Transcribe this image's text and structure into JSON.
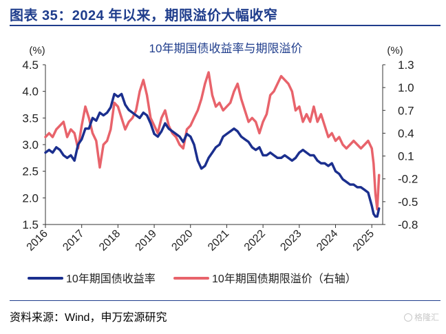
{
  "header": {
    "figure_title": "图表 35：2024 年以来，期限溢价大幅收窄",
    "title_color": "#1f3d8c"
  },
  "footer": {
    "source": "资料来源：Wind，申万宏源研究",
    "watermark": "格隆汇"
  },
  "chart_data": {
    "type": "line",
    "title": "10年期国债收益率与期限溢价",
    "left_unit": "(%)",
    "right_unit": "(%)",
    "x_start_year": 2016,
    "x_end_year": 2025.3,
    "x_ticks": [
      2016,
      2017,
      2018,
      2019,
      2020,
      2021,
      2022,
      2023,
      2024,
      2025
    ],
    "left_axis": {
      "ylim": [
        1.5,
        4.5
      ],
      "ticks": [
        1.5,
        2.0,
        2.5,
        3.0,
        3.5,
        4.0,
        4.5
      ]
    },
    "right_axis": {
      "ylim": [
        -0.8,
        1.3
      ],
      "ticks": [
        -0.8,
        -0.5,
        -0.2,
        0.1,
        0.4,
        0.7,
        1.0,
        1.3
      ]
    },
    "grid": false,
    "legend_position": "bottom",
    "series": [
      {
        "name": "10年期国债收益率",
        "axis": "left",
        "color": "#1b2f8e",
        "x": [
          2016.0,
          2016.1,
          2016.2,
          2016.3,
          2016.4,
          2016.5,
          2016.6,
          2016.7,
          2016.8,
          2016.9,
          2017.0,
          2017.1,
          2017.2,
          2017.3,
          2017.4,
          2017.5,
          2017.6,
          2017.7,
          2017.8,
          2017.9,
          2018.0,
          2018.1,
          2018.2,
          2018.3,
          2018.4,
          2018.5,
          2018.6,
          2018.7,
          2018.8,
          2018.9,
          2019.0,
          2019.1,
          2019.2,
          2019.3,
          2019.4,
          2019.5,
          2019.6,
          2019.7,
          2019.8,
          2019.9,
          2020.0,
          2020.1,
          2020.2,
          2020.3,
          2020.4,
          2020.5,
          2020.6,
          2020.7,
          2020.8,
          2020.9,
          2021.0,
          2021.1,
          2021.2,
          2021.3,
          2021.4,
          2021.5,
          2021.6,
          2021.7,
          2021.8,
          2021.9,
          2022.0,
          2022.1,
          2022.2,
          2022.3,
          2022.4,
          2022.5,
          2022.6,
          2022.7,
          2022.8,
          2022.9,
          2023.0,
          2023.1,
          2023.2,
          2023.3,
          2023.4,
          2023.5,
          2023.6,
          2023.7,
          2023.8,
          2023.9,
          2024.0,
          2024.1,
          2024.2,
          2024.3,
          2024.4,
          2024.5,
          2024.6,
          2024.7,
          2024.8,
          2024.9,
          2025.0,
          2025.05,
          2025.1,
          2025.15,
          2025.2
        ],
        "values": [
          2.85,
          2.9,
          2.85,
          2.95,
          2.9,
          2.8,
          2.75,
          2.8,
          2.7,
          3.0,
          3.1,
          3.3,
          3.3,
          3.5,
          3.45,
          3.6,
          3.55,
          3.6,
          3.7,
          3.95,
          3.9,
          3.95,
          3.75,
          3.65,
          3.6,
          3.55,
          3.5,
          3.6,
          3.55,
          3.4,
          3.2,
          3.15,
          3.25,
          3.4,
          3.3,
          3.25,
          3.2,
          3.15,
          3.05,
          3.2,
          3.15,
          3.0,
          2.7,
          2.55,
          2.6,
          2.75,
          2.85,
          2.95,
          3.0,
          3.15,
          3.2,
          3.25,
          3.3,
          3.25,
          3.15,
          3.1,
          3.05,
          2.95,
          2.9,
          2.95,
          2.8,
          2.8,
          2.85,
          2.8,
          2.75,
          2.75,
          2.8,
          2.75,
          2.7,
          2.75,
          2.85,
          2.9,
          2.85,
          2.8,
          2.8,
          2.7,
          2.65,
          2.65,
          2.6,
          2.65,
          2.5,
          2.45,
          2.35,
          2.3,
          2.25,
          2.25,
          2.2,
          2.2,
          2.15,
          2.1,
          1.85,
          1.7,
          1.65,
          1.65,
          1.8
        ]
      },
      {
        "name": "10年期国债期限溢价（右轴）",
        "axis": "right",
        "color": "#e8636b",
        "x": [
          2016.0,
          2016.1,
          2016.2,
          2016.3,
          2016.4,
          2016.5,
          2016.6,
          2016.7,
          2016.8,
          2016.9,
          2017.0,
          2017.1,
          2017.2,
          2017.3,
          2017.4,
          2017.5,
          2017.6,
          2017.7,
          2017.8,
          2017.9,
          2018.0,
          2018.1,
          2018.2,
          2018.3,
          2018.4,
          2018.5,
          2018.6,
          2018.7,
          2018.8,
          2018.9,
          2019.0,
          2019.1,
          2019.2,
          2019.3,
          2019.4,
          2019.5,
          2019.6,
          2019.7,
          2019.8,
          2019.9,
          2020.0,
          2020.1,
          2020.2,
          2020.3,
          2020.4,
          2020.5,
          2020.6,
          2020.7,
          2020.8,
          2020.9,
          2021.0,
          2021.1,
          2021.2,
          2021.3,
          2021.4,
          2021.5,
          2021.6,
          2021.7,
          2021.8,
          2021.9,
          2022.0,
          2022.1,
          2022.2,
          2022.3,
          2022.4,
          2022.5,
          2022.6,
          2022.7,
          2022.8,
          2022.9,
          2023.0,
          2023.1,
          2023.2,
          2023.3,
          2023.4,
          2023.5,
          2023.6,
          2023.7,
          2023.8,
          2023.9,
          2024.0,
          2024.1,
          2024.2,
          2024.3,
          2024.4,
          2024.5,
          2024.6,
          2024.7,
          2024.8,
          2024.9,
          2025.0,
          2025.05,
          2025.1,
          2025.15,
          2025.2
        ],
        "values": [
          0.35,
          0.4,
          0.35,
          0.45,
          0.5,
          0.55,
          0.35,
          0.45,
          0.4,
          0.2,
          0.5,
          0.75,
          0.6,
          0.4,
          0.3,
          -0.05,
          0.25,
          0.3,
          0.45,
          0.8,
          0.75,
          0.6,
          0.45,
          0.55,
          0.6,
          0.7,
          0.95,
          1.1,
          0.9,
          0.6,
          0.5,
          0.4,
          0.6,
          0.7,
          0.5,
          0.4,
          0.35,
          0.25,
          0.2,
          0.45,
          0.5,
          0.6,
          0.7,
          0.85,
          1.05,
          1.2,
          0.9,
          0.75,
          0.8,
          0.7,
          0.75,
          0.8,
          0.95,
          1.05,
          0.85,
          0.7,
          0.55,
          0.6,
          0.55,
          0.4,
          0.55,
          0.65,
          0.9,
          0.95,
          1.05,
          1.15,
          1.1,
          1.05,
          0.95,
          0.7,
          0.75,
          0.55,
          0.65,
          0.55,
          0.75,
          0.55,
          0.65,
          0.5,
          0.35,
          0.4,
          0.3,
          0.35,
          0.25,
          0.2,
          0.25,
          0.3,
          0.25,
          0.2,
          0.25,
          0.3,
          0.2,
          0.0,
          -0.4,
          -0.6,
          -0.15
        ]
      }
    ]
  }
}
